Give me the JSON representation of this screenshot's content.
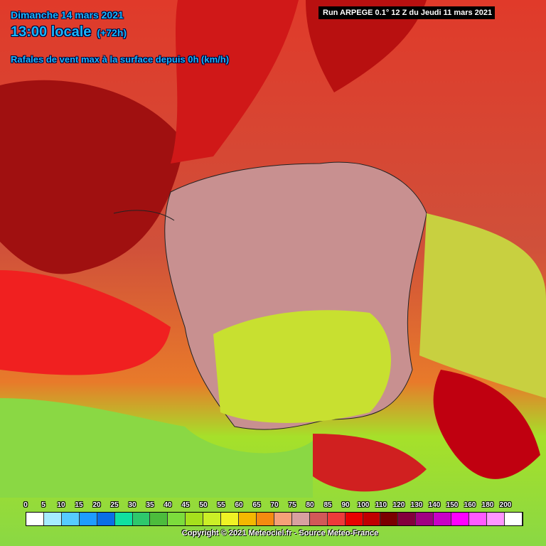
{
  "header": {
    "date": "Dimanche 14 mars 2021",
    "time": "13:00 locale",
    "lead": "(+72h)",
    "description": "Rafales de vent max à la surface depuis 0h (km/h)"
  },
  "run": "Run ARPEGE 0.1° 12 Z du Jeudi 11 mars 2021",
  "legend": {
    "items": [
      {
        "value": 0,
        "color": "#ffffff"
      },
      {
        "value": 5,
        "color": "#a6ecff"
      },
      {
        "value": 10,
        "color": "#56cbff"
      },
      {
        "value": 15,
        "color": "#1e9cff"
      },
      {
        "value": 20,
        "color": "#0a6ee6"
      },
      {
        "value": 25,
        "color": "#10e0a0"
      },
      {
        "value": 30,
        "color": "#2ec86c"
      },
      {
        "value": 35,
        "color": "#4cbc3c"
      },
      {
        "value": 40,
        "color": "#7cdc3c"
      },
      {
        "value": 45,
        "color": "#a6e01c"
      },
      {
        "value": 50,
        "color": "#cbef26"
      },
      {
        "value": 55,
        "color": "#f0f224"
      },
      {
        "value": 60,
        "color": "#f5b800"
      },
      {
        "value": 65,
        "color": "#f58a10"
      },
      {
        "value": 70,
        "color": "#f5a078"
      },
      {
        "value": 75,
        "color": "#d8a0a0"
      },
      {
        "value": 80,
        "color": "#d25858"
      },
      {
        "value": 85,
        "color": "#ee3a3a"
      },
      {
        "value": 90,
        "color": "#e80000"
      },
      {
        "value": 100,
        "color": "#c00000"
      },
      {
        "value": 110,
        "color": "#7a0000"
      },
      {
        "value": 120,
        "color": "#82003c"
      },
      {
        "value": 130,
        "color": "#a00082"
      },
      {
        "value": 140,
        "color": "#c800c8"
      },
      {
        "value": 150,
        "color": "#ff00ff"
      },
      {
        "value": 160,
        "color": "#ff5aff"
      },
      {
        "value": 180,
        "color": "#ff96ff"
      },
      {
        "value": 200,
        "color": "#ffffff"
      }
    ]
  },
  "footer": "Copyright © 2021 Meteociel.fr - Source Meteo-France"
}
